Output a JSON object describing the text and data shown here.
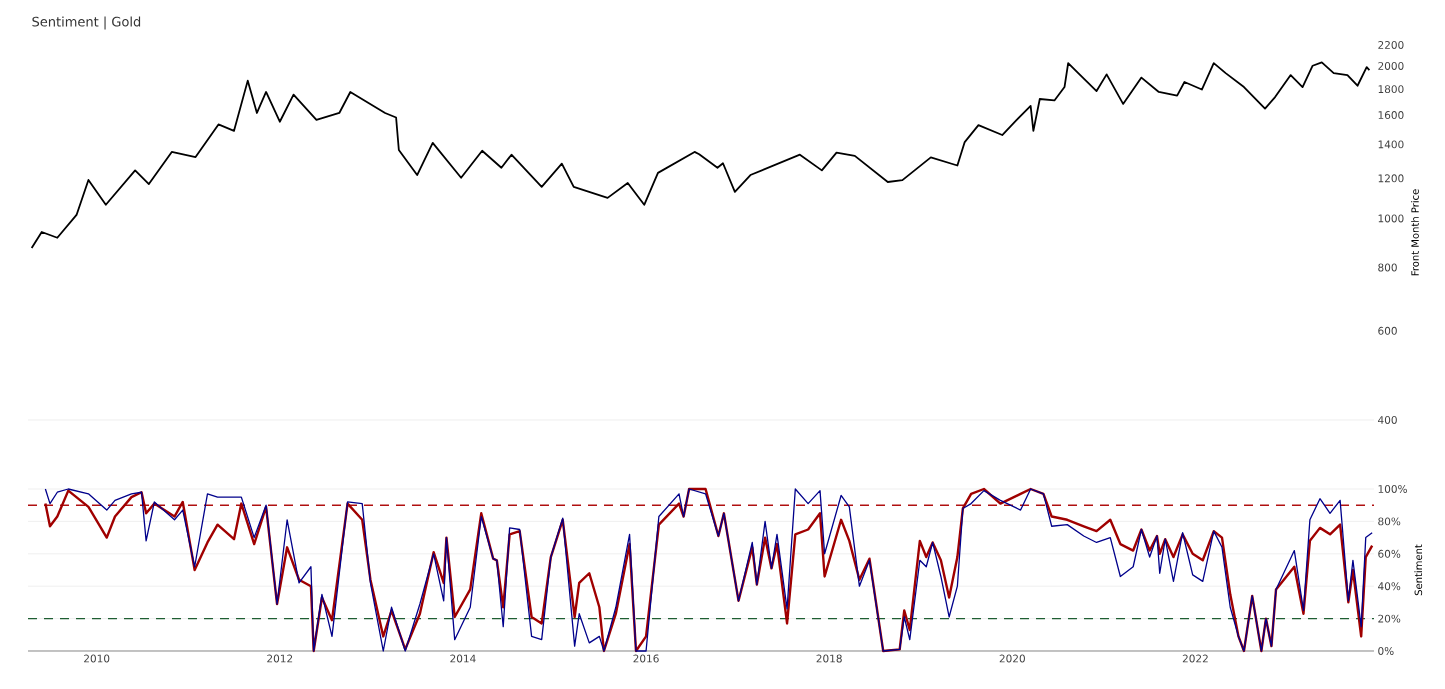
{
  "chart_data": [
    {
      "type": "line",
      "title": "Sentiment | Gold",
      "ylabel": "Front Month Price",
      "log": "y",
      "tick_labels": "y",
      "marker": "none",
      "line_style": "solid",
      "xlim": [
        2009.25,
        2023.95
      ],
      "xticks": [
        2010,
        2012,
        2014,
        2016,
        2018,
        2020,
        2022
      ],
      "ylim": [
        400,
        2200
      ],
      "yticks": [
        400,
        600,
        800,
        1000,
        1200,
        1400,
        1600,
        1800,
        2000,
        2200
      ],
      "x": [
        2009.29,
        2009.4,
        2009.57,
        2009.78,
        2009.91,
        2010.1,
        2010.42,
        2010.57,
        2010.82,
        2011.08,
        2011.33,
        2011.5,
        2011.65,
        2011.75,
        2011.85,
        2012.0,
        2012.15,
        2012.4,
        2012.65,
        2012.77,
        2013.15,
        2013.27,
        2013.3,
        2013.5,
        2013.67,
        2013.98,
        2014.21,
        2014.42,
        2014.53,
        2014.86,
        2015.08,
        2015.21,
        2015.58,
        2015.8,
        2015.98,
        2016.13,
        2016.53,
        2016.58,
        2016.78,
        2016.84,
        2016.97,
        2017.14,
        2017.68,
        2017.92,
        2018.08,
        2018.28,
        2018.64,
        2018.8,
        2019.11,
        2019.4,
        2019.48,
        2019.63,
        2019.89,
        2020.04,
        2020.2,
        2020.23,
        2020.3,
        2020.46,
        2020.57,
        2020.61,
        2020.72,
        2020.92,
        2021.03,
        2021.21,
        2021.41,
        2021.6,
        2021.8,
        2021.88,
        2022.07,
        2022.2,
        2022.33,
        2022.53,
        2022.76,
        2022.87,
        2023.04,
        2023.17,
        2023.28,
        2023.38,
        2023.51,
        2023.66,
        2023.77,
        2023.87,
        2023.9
      ],
      "series": [
        {
          "color": "#000000",
          "values": [
            874,
            940,
            916,
            1016,
            1191,
            1064,
            1244,
            1169,
            1353,
            1322,
            1533,
            1489,
            1871,
            1615,
            1777,
            1552,
            1756,
            1565,
            1615,
            1777,
            1615,
            1582,
            1365,
            1218,
            1410,
            1203,
            1360,
            1259,
            1336,
            1154,
            1283,
            1154,
            1098,
            1175,
            1064,
            1230,
            1353,
            1339,
            1259,
            1285,
            1128,
            1218,
            1336,
            1244,
            1349,
            1329,
            1180,
            1190,
            1320,
            1272,
            1415,
            1528,
            1461,
            1560,
            1668,
            1489,
            1721,
            1710,
            1817,
            2026,
            1936,
            1784,
            1925,
            1683,
            1897,
            1777,
            1747,
            1859,
            1797,
            2026,
            1936,
            1817,
            1648,
            1736,
            1919,
            1817,
            2002,
            2033,
            1936,
            1919,
            1828,
            1990,
            1962
          ]
        }
      ]
    },
    {
      "type": "line",
      "ylabel": "Sentiment",
      "grid": "y",
      "marker": "none",
      "line_style": "solid",
      "xlim": [
        2009.25,
        2023.95
      ],
      "xticks": [
        2010,
        2012,
        2014,
        2016,
        2018,
        2020,
        2022
      ],
      "ylim": [
        0,
        100
      ],
      "yticks": [
        {
          "value": 0,
          "label": "0%"
        },
        {
          "value": 20,
          "label": "20%"
        },
        {
          "value": 40,
          "label": "40%"
        },
        {
          "value": 60,
          "label": "60%"
        },
        {
          "value": 80,
          "label": "80%"
        },
        {
          "value": 100,
          "label": "100%"
        }
      ],
      "ref_lines": [
        {
          "axis": "y",
          "value": 90,
          "color": "#b01010",
          "line_style": "dashed"
        },
        {
          "axis": "y",
          "value": 20,
          "color": "#1e5e32",
          "line_style": "dashed"
        }
      ],
      "x": [
        2009.44,
        2009.49,
        2009.57,
        2009.69,
        2009.91,
        2010.11,
        2010.2,
        2010.38,
        2010.49,
        2010.54,
        2010.63,
        2010.85,
        2010.94,
        2011.07,
        2011.21,
        2011.32,
        2011.5,
        2011.58,
        2011.72,
        2011.85,
        2011.97,
        2012.08,
        2012.21,
        2012.34,
        2012.37,
        2012.46,
        2012.57,
        2012.74,
        2012.9,
        2012.99,
        2013.13,
        2013.22,
        2013.37,
        2013.53,
        2013.68,
        2013.79,
        2013.82,
        2013.91,
        2014.08,
        2014.2,
        2014.33,
        2014.37,
        2014.44,
        2014.51,
        2014.62,
        2014.75,
        2014.86,
        2014.96,
        2015.09,
        2015.22,
        2015.27,
        2015.38,
        2015.49,
        2015.54,
        2015.67,
        2015.82,
        2015.89,
        2016.0,
        2016.14,
        2016.36,
        2016.41,
        2016.47,
        2016.65,
        2016.79,
        2016.85,
        2017.01,
        2017.16,
        2017.21,
        2017.3,
        2017.37,
        2017.43,
        2017.54,
        2017.63,
        2017.77,
        2017.9,
        2017.95,
        2018.13,
        2018.22,
        2018.33,
        2018.44,
        2018.59,
        2018.77,
        2018.82,
        2018.88,
        2018.99,
        2019.06,
        2019.13,
        2019.22,
        2019.31,
        2019.4,
        2019.46,
        2019.55,
        2019.69,
        2019.87,
        2020.09,
        2020.2,
        2020.34,
        2020.43,
        2020.6,
        2020.78,
        2020.92,
        2021.07,
        2021.18,
        2021.32,
        2021.41,
        2021.5,
        2021.58,
        2021.61,
        2021.67,
        2021.76,
        2021.86,
        2021.97,
        2022.08,
        2022.2,
        2022.29,
        2022.38,
        2022.47,
        2022.53,
        2022.62,
        2022.72,
        2022.77,
        2022.83,
        2022.88,
        2023.08,
        2023.18,
        2023.25,
        2023.36,
        2023.47,
        2023.58,
        2023.67,
        2023.72,
        2023.81,
        2023.86,
        2023.93
      ],
      "series": [
        {
          "color": "#a00000",
          "values": [
            91,
            77,
            83,
            99,
            89,
            70,
            83,
            95,
            98,
            85,
            91,
            83,
            92,
            50,
            67,
            78,
            69,
            91,
            66,
            89,
            29,
            64,
            44,
            40,
            0,
            33,
            19,
            91,
            81,
            44,
            9,
            25,
            1,
            23,
            61,
            42,
            70,
            21,
            38,
            85,
            57,
            56,
            27,
            72,
            74,
            21,
            17,
            58,
            81,
            21,
            42,
            48,
            27,
            0,
            23,
            66,
            0,
            9,
            78,
            91,
            83,
            100,
            100,
            71,
            85,
            31,
            64,
            41,
            70,
            51,
            66,
            17,
            72,
            75,
            85,
            46,
            81,
            68,
            44,
            57,
            0,
            1,
            25,
            13,
            68,
            58,
            67,
            56,
            33,
            58,
            88,
            97,
            100,
            91,
            97,
            100,
            97,
            83,
            81,
            77,
            74,
            81,
            66,
            62,
            75,
            62,
            71,
            60,
            69,
            58,
            72,
            60,
            56,
            74,
            70,
            35,
            9,
            0,
            34,
            0,
            20,
            3,
            38,
            52,
            23,
            68,
            76,
            72,
            78,
            30,
            50,
            9,
            58,
            65
          ]
        },
        {
          "color": "#00008b",
          "values": [
            100,
            91,
            98,
            100,
            97,
            87,
            93,
            97,
            98,
            68,
            92,
            81,
            87,
            52,
            97,
            95,
            95,
            95,
            70,
            90,
            29,
            81,
            42,
            52,
            0,
            35,
            9,
            92,
            91,
            42,
            0,
            27,
            0,
            29,
            60,
            31,
            70,
            7,
            27,
            83,
            57,
            56,
            15,
            76,
            75,
            9,
            7,
            58,
            82,
            3,
            23,
            5,
            9,
            0,
            27,
            72,
            0,
            0,
            83,
            97,
            83,
            100,
            97,
            71,
            85,
            31,
            67,
            41,
            80,
            51,
            72,
            26,
            100,
            91,
            99,
            60,
            96,
            89,
            40,
            56,
            0,
            1,
            21,
            7,
            56,
            52,
            67,
            46,
            21,
            40,
            88,
            91,
            99,
            93,
            87,
            100,
            97,
            77,
            78,
            71,
            67,
            70,
            46,
            52,
            75,
            58,
            71,
            48,
            69,
            43,
            73,
            47,
            43,
            74,
            64,
            27,
            9,
            0,
            34,
            0,
            20,
            3,
            38,
            62,
            25,
            81,
            94,
            85,
            93,
            31,
            56,
            15,
            70,
            73
          ]
        }
      ]
    }
  ]
}
